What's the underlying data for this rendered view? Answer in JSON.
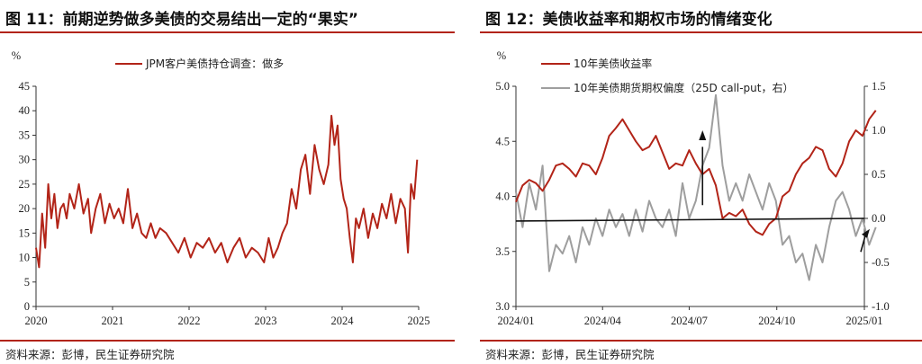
{
  "left": {
    "title": "图 11：前期逆势做多美债的交易结出一定的“果实”",
    "source": "资料来源：彭博，民生证券研究院"
  },
  "right": {
    "title": "图 12：美债收益率和期权市场的情绪变化",
    "source": "资料来源：彭博，民生证券研究院"
  },
  "chart_data": [
    {
      "type": "line",
      "title": "",
      "ylabel": "%",
      "ylim": [
        0,
        45
      ],
      "yticks": [
        0,
        5,
        10,
        15,
        20,
        25,
        30,
        35,
        40,
        45
      ],
      "xlim": [
        2020,
        2025
      ],
      "xticks": [
        "2020",
        "2021",
        "2022",
        "2023",
        "2024",
        "2025"
      ],
      "legend_position": "top-center",
      "color": "#b22418",
      "series": [
        {
          "name": "JPM客户美债持仓调查：做多",
          "x": [
            2020.0,
            2020.04,
            2020.08,
            2020.12,
            2020.16,
            2020.2,
            2020.24,
            2020.28,
            2020.32,
            2020.36,
            2020.4,
            2020.44,
            2020.5,
            2020.56,
            2020.62,
            2020.68,
            2020.72,
            2020.78,
            2020.84,
            2020.9,
            2020.96,
            2021.02,
            2021.08,
            2021.14,
            2021.2,
            2021.26,
            2021.32,
            2021.38,
            2021.44,
            2021.5,
            2021.56,
            2021.62,
            2021.7,
            2021.78,
            2021.86,
            2021.94,
            2022.02,
            2022.1,
            2022.18,
            2022.26,
            2022.34,
            2022.42,
            2022.5,
            2022.58,
            2022.66,
            2022.74,
            2022.82,
            2022.9,
            2022.98,
            2023.04,
            2023.1,
            2023.16,
            2023.22,
            2023.28,
            2023.34,
            2023.4,
            2023.46,
            2023.52,
            2023.58,
            2023.64,
            2023.7,
            2023.76,
            2023.82,
            2023.86,
            2023.9,
            2023.94,
            2023.98,
            2024.02,
            2024.06,
            2024.1,
            2024.14,
            2024.18,
            2024.22,
            2024.28,
            2024.34,
            2024.4,
            2024.46,
            2024.52,
            2024.58,
            2024.64,
            2024.7,
            2024.76,
            2024.82,
            2024.86,
            2024.9,
            2024.94,
            2024.98
          ],
          "values": [
            12,
            8,
            19,
            12,
            25,
            18,
            23,
            16,
            20,
            21,
            18,
            23,
            20,
            25,
            19,
            22,
            15,
            20,
            23,
            17,
            21,
            18,
            20,
            17,
            24,
            16,
            19,
            15,
            14,
            17,
            14,
            16,
            15,
            13,
            11,
            14,
            10,
            13,
            12,
            14,
            11,
            13,
            9,
            12,
            14,
            10,
            12,
            11,
            9,
            14,
            10,
            12,
            15,
            17,
            24,
            20,
            28,
            31,
            23,
            33,
            28,
            25,
            29,
            39,
            33,
            37,
            26,
            22,
            20,
            14,
            9,
            18,
            16,
            20,
            14,
            19,
            16,
            21,
            18,
            23,
            17,
            22,
            20,
            11,
            25,
            22,
            30
          ]
        }
      ]
    },
    {
      "type": "line",
      "title": "",
      "ylabel_left": "%",
      "ylim_left": [
        3.0,
        5.0
      ],
      "yticks_left": [
        "3.0",
        "3.5",
        "4.0",
        "4.5",
        "5.0"
      ],
      "ylim_right": [
        -1.0,
        1.5
      ],
      "yticks_right": [
        "-1.0",
        "-0.5",
        "0.0",
        "0.5",
        "1.0",
        "1.5"
      ],
      "xlim": [
        "2024/01",
        "2025/01"
      ],
      "xticks": [
        "2024/01",
        "2024/04",
        "2024/07",
        "2024/10",
        "2025/01"
      ],
      "legend_position": "top-left",
      "series": [
        {
          "name": "10年美债收益率",
          "axis": "left",
          "color": "#b22418",
          "x": [
            "2024-01-01",
            "2024-01-08",
            "2024-01-15",
            "2024-01-22",
            "2024-01-29",
            "2024-02-05",
            "2024-02-12",
            "2024-02-19",
            "2024-02-26",
            "2024-03-04",
            "2024-03-11",
            "2024-03-18",
            "2024-03-25",
            "2024-04-01",
            "2024-04-08",
            "2024-04-15",
            "2024-04-22",
            "2024-04-29",
            "2024-05-06",
            "2024-05-13",
            "2024-05-20",
            "2024-05-27",
            "2024-06-03",
            "2024-06-10",
            "2024-06-17",
            "2024-06-24",
            "2024-07-01",
            "2024-07-08",
            "2024-07-15",
            "2024-07-22",
            "2024-07-29",
            "2024-08-05",
            "2024-08-12",
            "2024-08-19",
            "2024-08-26",
            "2024-09-02",
            "2024-09-09",
            "2024-09-16",
            "2024-09-23",
            "2024-09-30",
            "2024-10-07",
            "2024-10-14",
            "2024-10-21",
            "2024-10-28",
            "2024-11-04",
            "2024-11-11",
            "2024-11-18",
            "2024-11-25",
            "2024-12-02",
            "2024-12-09",
            "2024-12-16",
            "2024-12-23",
            "2024-12-30",
            "2025-01-06",
            "2025-01-13"
          ],
          "values": [
            3.95,
            4.1,
            4.15,
            4.12,
            4.05,
            4.15,
            4.28,
            4.3,
            4.25,
            4.18,
            4.3,
            4.28,
            4.2,
            4.35,
            4.55,
            4.62,
            4.7,
            4.6,
            4.5,
            4.42,
            4.45,
            4.55,
            4.4,
            4.25,
            4.3,
            4.28,
            4.42,
            4.3,
            4.2,
            4.25,
            4.1,
            3.8,
            3.85,
            3.82,
            3.88,
            3.75,
            3.68,
            3.65,
            3.75,
            3.8,
            4.0,
            4.05,
            4.2,
            4.3,
            4.35,
            4.45,
            4.42,
            4.25,
            4.18,
            4.3,
            4.5,
            4.6,
            4.55,
            4.7,
            4.78
          ]
        },
        {
          "name": "10年美债期货期权偏度（25D call-put，右）",
          "axis": "right",
          "color": "#9e9e9e",
          "x": [
            "2024-01-01",
            "2024-01-08",
            "2024-01-15",
            "2024-01-22",
            "2024-01-29",
            "2024-02-05",
            "2024-02-12",
            "2024-02-19",
            "2024-02-26",
            "2024-03-04",
            "2024-03-11",
            "2024-03-18",
            "2024-03-25",
            "2024-04-01",
            "2024-04-08",
            "2024-04-15",
            "2024-04-22",
            "2024-04-29",
            "2024-05-06",
            "2024-05-13",
            "2024-05-20",
            "2024-05-27",
            "2024-06-03",
            "2024-06-10",
            "2024-06-17",
            "2024-06-24",
            "2024-07-01",
            "2024-07-08",
            "2024-07-15",
            "2024-07-22",
            "2024-07-29",
            "2024-08-05",
            "2024-08-12",
            "2024-08-19",
            "2024-08-26",
            "2024-09-02",
            "2024-09-09",
            "2024-09-16",
            "2024-09-23",
            "2024-09-30",
            "2024-10-07",
            "2024-10-14",
            "2024-10-21",
            "2024-10-28",
            "2024-11-04",
            "2024-11-11",
            "2024-11-18",
            "2024-11-25",
            "2024-12-02",
            "2024-12-09",
            "2024-12-16",
            "2024-12-23",
            "2024-12-30",
            "2025-01-06",
            "2025-01-13"
          ],
          "values": [
            0.3,
            -0.1,
            0.4,
            0.1,
            0.6,
            -0.6,
            -0.3,
            -0.4,
            -0.2,
            -0.5,
            -0.1,
            -0.3,
            0.0,
            -0.2,
            0.1,
            -0.1,
            0.05,
            -0.2,
            0.1,
            -0.15,
            0.2,
            0.0,
            -0.1,
            0.1,
            -0.2,
            0.4,
            0.0,
            0.2,
            0.6,
            0.8,
            1.4,
            0.6,
            0.2,
            0.4,
            0.2,
            0.5,
            0.3,
            0.1,
            0.4,
            0.2,
            -0.3,
            -0.2,
            -0.5,
            -0.4,
            -0.7,
            -0.3,
            -0.5,
            -0.1,
            0.2,
            0.3,
            0.1,
            -0.2,
            0.0,
            -0.3,
            -0.1
          ]
        }
      ]
    }
  ]
}
